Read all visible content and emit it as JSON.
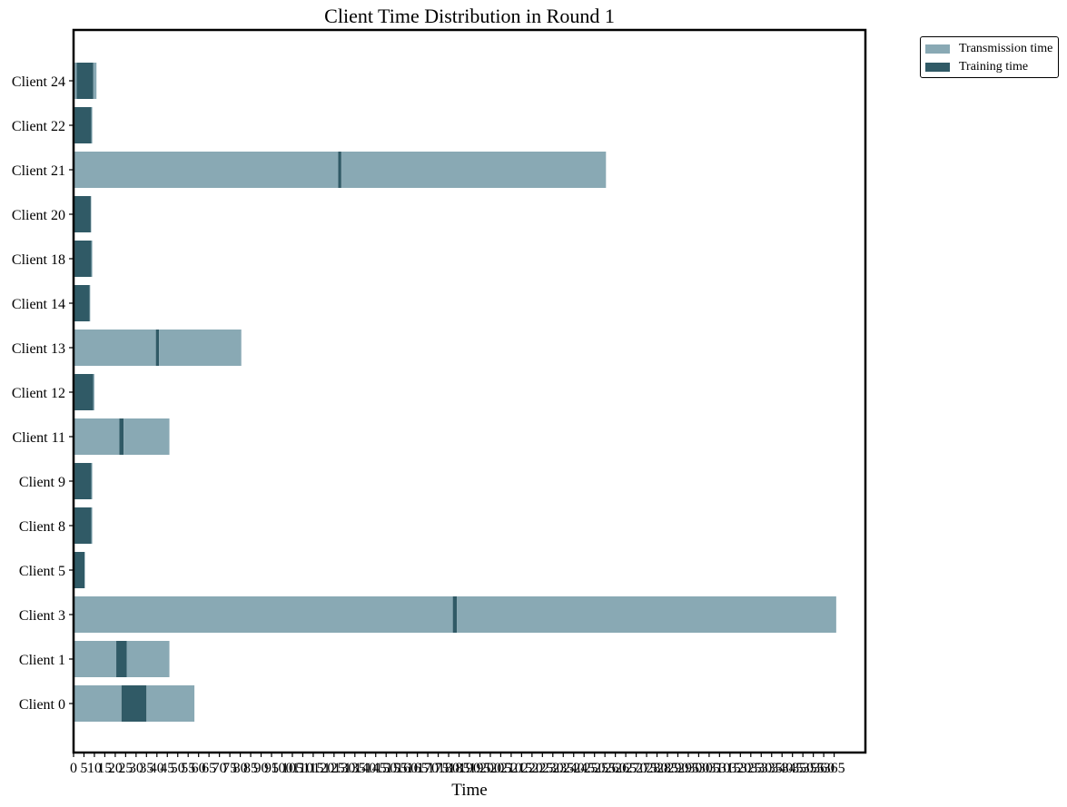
{
  "chart_data": {
    "type": "bar",
    "orientation": "horizontal-stacked",
    "title": "Client Time Distribution in Round 1",
    "xlabel": "Time",
    "ylabel": "",
    "xlim": [
      0,
      380
    ],
    "x_ticks": [
      0,
      5,
      10,
      15,
      20,
      25,
      30,
      35,
      40,
      45,
      50,
      55,
      60,
      65,
      70,
      75,
      80,
      85,
      90,
      95,
      100,
      105,
      110,
      115,
      120,
      125,
      130,
      135,
      140,
      145,
      150,
      155,
      160,
      165,
      170,
      175,
      180,
      185,
      190,
      195,
      200,
      205,
      210,
      215,
      220,
      225,
      230,
      235,
      240,
      245,
      250,
      255,
      260,
      265,
      270,
      275,
      280,
      285,
      290,
      295,
      300,
      305,
      310,
      315,
      320,
      325,
      330,
      335,
      340,
      345,
      350,
      355,
      360,
      365
    ],
    "categories": [
      "Client 0",
      "Client 1",
      "Client 3",
      "Client 5",
      "Client 8",
      "Client 9",
      "Client 11",
      "Client 12",
      "Client 13",
      "Client 14",
      "Client 18",
      "Client 20",
      "Client 21",
      "Client 22",
      "Client 24"
    ],
    "series": [
      {
        "name": "Transmission time",
        "color": "#89a9b4",
        "role": "transmission",
        "values": [
          46,
          41,
          364,
          0.5,
          1,
          1,
          44,
          1,
          79,
          0.5,
          1,
          0.5,
          254,
          1,
          3
        ]
      },
      {
        "name": "Training time",
        "color": "#305a66",
        "role": "training",
        "values": [
          12,
          5,
          2,
          5,
          8,
          8,
          2,
          9,
          1.5,
          7.5,
          8,
          8,
          1.5,
          8,
          8
        ]
      }
    ],
    "legend_position": "upper-right-outside",
    "grid": false
  }
}
